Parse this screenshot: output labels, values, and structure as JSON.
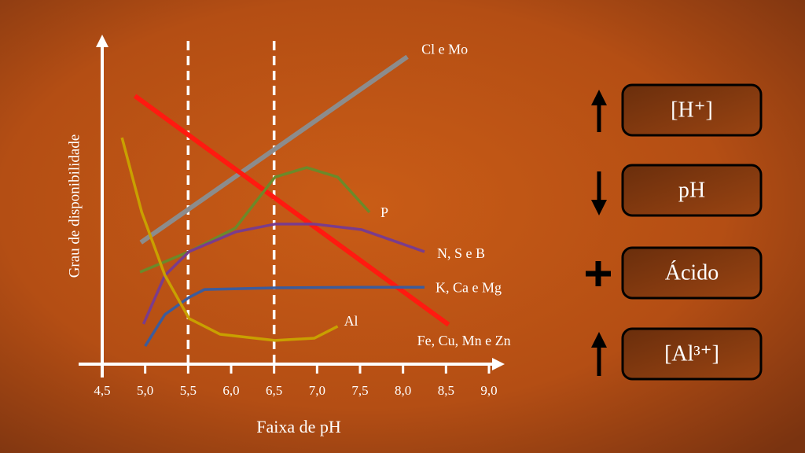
{
  "chart_data": {
    "type": "line",
    "xlabel": "Faixa de pH",
    "ylabel": "Grau de disponibilidade",
    "xlim": [
      4.5,
      9.0
    ],
    "ylim": [
      0,
      10
    ],
    "xticks": [
      {
        "value": 4.5,
        "label": "4,5"
      },
      {
        "value": 5.0,
        "label": "5,0"
      },
      {
        "value": 5.5,
        "label": "5,5"
      },
      {
        "value": 6.0,
        "label": "6,0"
      },
      {
        "value": 6.5,
        "label": "6,5"
      },
      {
        "value": 7.0,
        "label": "7,0"
      },
      {
        "value": 7.5,
        "label": "7,5"
      },
      {
        "value": 8.0,
        "label": "8,0"
      },
      {
        "value": 8.5,
        "label": "8,5"
      },
      {
        "value": 9.0,
        "label": "9,0"
      }
    ],
    "reference_lines": [
      5.5,
      6.5
    ],
    "series": [
      {
        "name": "Cl e Mo",
        "color": "#8c8c8c",
        "x": [
          4.95,
          8.05
        ],
        "values": [
          3.7,
          9.35
        ]
      },
      {
        "name": "Fe, Cu, Mn e Zn",
        "color": "#ff1a10",
        "x": [
          4.88,
          8.53
        ],
        "values": [
          8.16,
          1.2
        ]
      },
      {
        "name": "P",
        "color": "#6b8a2a",
        "x": [
          4.94,
          5.51,
          6.05,
          6.51,
          6.88,
          7.24,
          7.61
        ],
        "values": [
          2.8,
          3.42,
          4.14,
          5.69,
          5.98,
          5.69,
          4.62
        ]
      },
      {
        "name": "N, S e B",
        "color": "#7a3c8c",
        "x": [
          4.98,
          5.23,
          5.51,
          6.05,
          6.51,
          6.97,
          7.52,
          8.25
        ],
        "values": [
          1.22,
          2.7,
          3.42,
          4.02,
          4.26,
          4.26,
          4.09,
          3.42
        ]
      },
      {
        "name": "K, Ca e Mg",
        "color": "#3c5c9c",
        "x": [
          5.0,
          5.23,
          5.51,
          5.69,
          6.51,
          7.43,
          8.25
        ],
        "values": [
          0.55,
          1.51,
          2.03,
          2.27,
          2.32,
          2.34,
          2.34
        ]
      },
      {
        "name": "Al",
        "color": "#c9a000",
        "x": [
          4.73,
          4.96,
          5.23,
          5.51,
          5.87,
          6.51,
          6.97,
          7.24
        ],
        "values": [
          6.89,
          4.62,
          2.7,
          1.39,
          0.91,
          0.72,
          0.79,
          1.15
        ]
      }
    ]
  },
  "side_panel": {
    "items": [
      "[H⁺]",
      "pH",
      "Ácido",
      "[Al³⁺]"
    ]
  }
}
